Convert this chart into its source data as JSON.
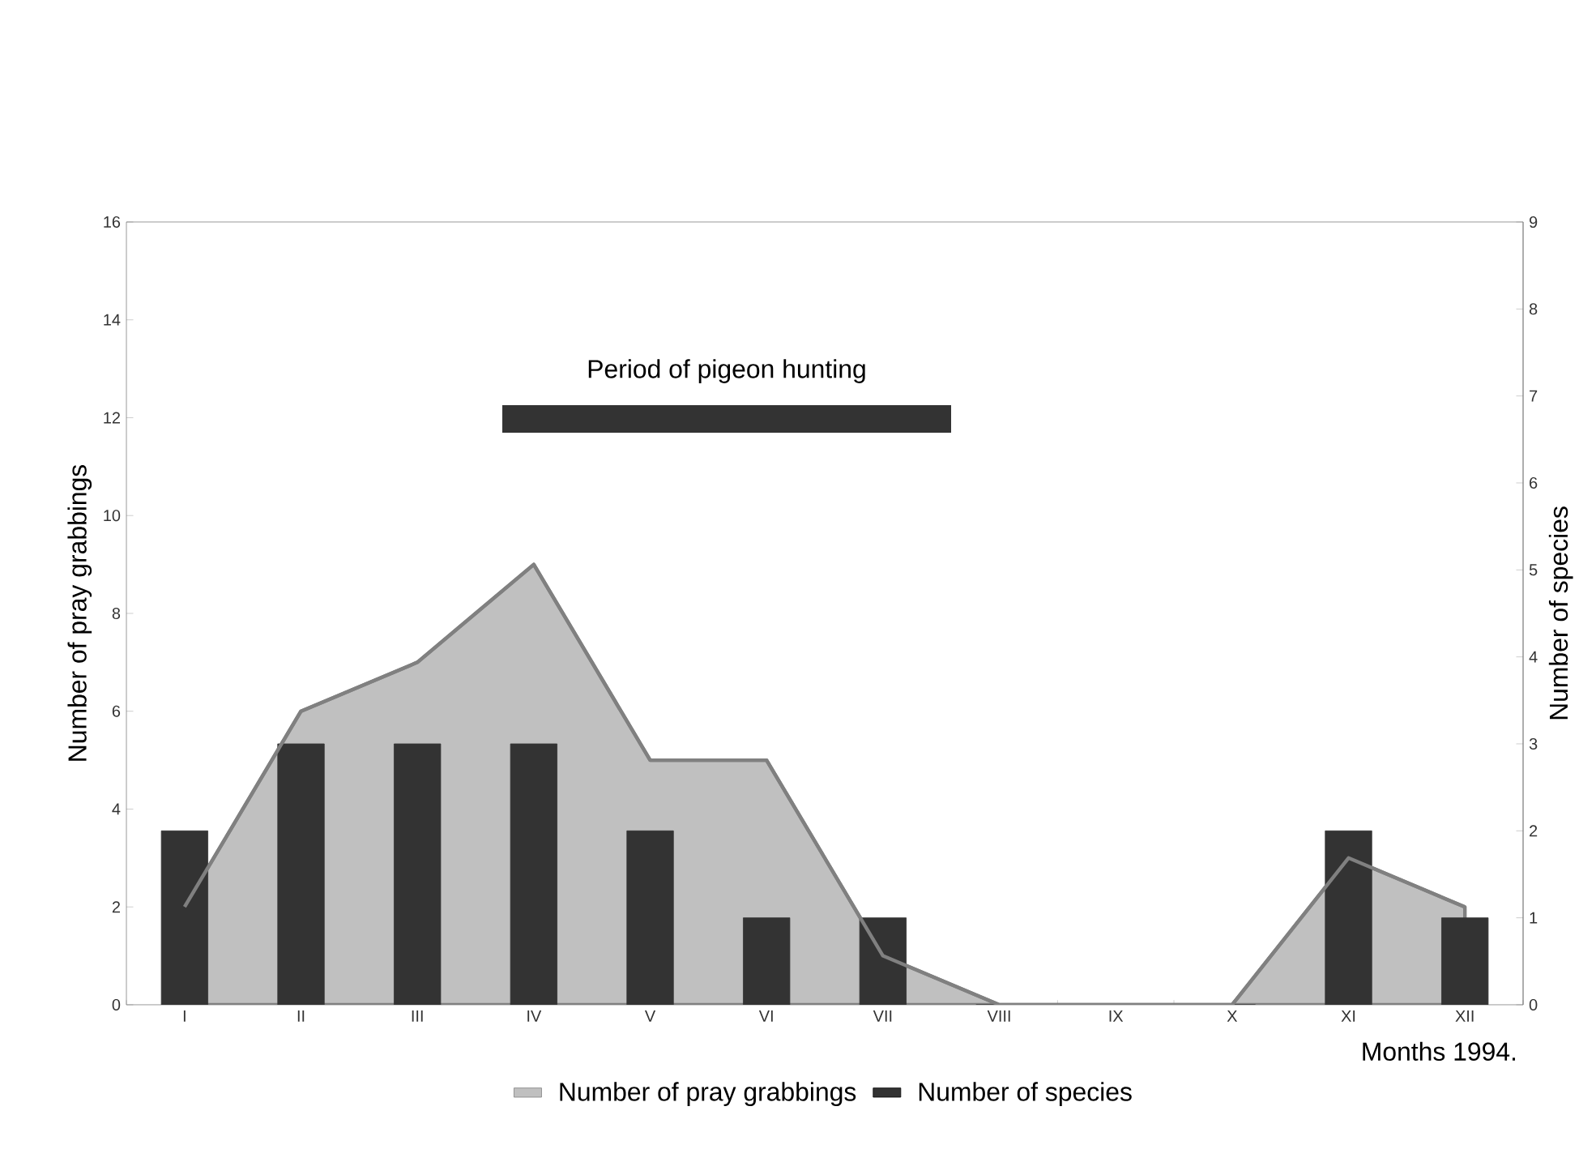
{
  "chart_data": {
    "type": "bar",
    "categories": [
      "I",
      "II",
      "III",
      "IV",
      "V",
      "VI",
      "VII",
      "VIII",
      "IX",
      "X",
      "XI",
      "XII"
    ],
    "series": [
      {
        "name": "Number of pray grabbings",
        "type": "area",
        "axis": "y",
        "color": "#c0c0c0",
        "values": [
          2,
          6,
          7,
          9,
          5,
          5,
          1,
          0,
          0,
          0,
          3,
          2
        ]
      },
      {
        "name": "Number of species",
        "axis": "y2",
        "color": "#333333",
        "values": [
          2,
          3,
          3,
          3,
          2,
          1,
          1,
          0,
          0,
          0,
          2,
          1
        ]
      }
    ],
    "xlabel": "Months 1994.",
    "ylabel": "Number of pray grabbings",
    "y2label": "Number of species",
    "ylim": [
      0,
      16
    ],
    "yticks": [
      0,
      2,
      4,
      6,
      8,
      10,
      12,
      14,
      16
    ],
    "y2lim": [
      0,
      9
    ],
    "y2ticks": [
      0,
      1,
      2,
      3,
      4,
      5,
      6,
      7,
      8,
      9
    ],
    "annotations": [
      "Period of pigeon hunting"
    ],
    "legend": "bottom"
  }
}
